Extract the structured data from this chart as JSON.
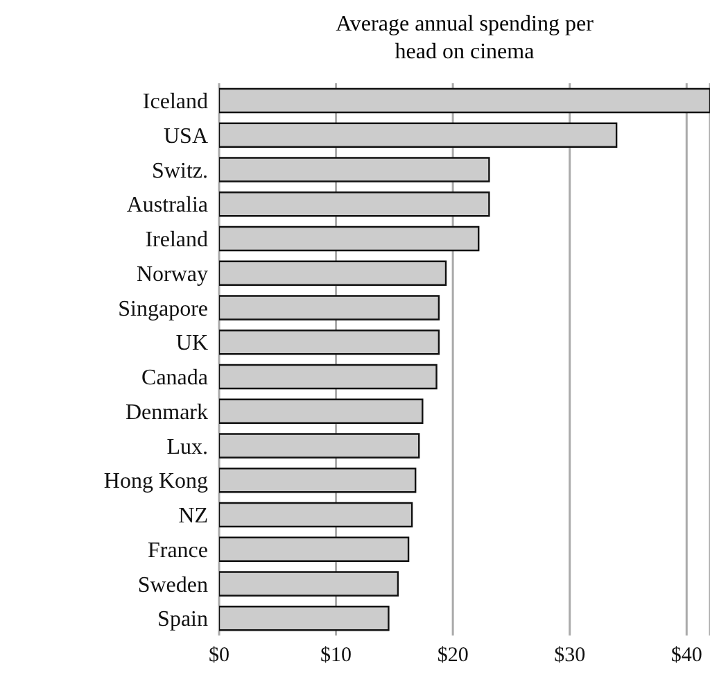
{
  "chart_data": {
    "type": "bar",
    "orientation": "horizontal",
    "title": "Average annual spending per head on cinema",
    "categories": [
      "Iceland",
      "USA",
      "Switz.",
      "Australia",
      "Ireland",
      "Norway",
      "Singapore",
      "UK",
      "Canada",
      "Denmark",
      "Lux.",
      "Hong Kong",
      "NZ",
      "France",
      "Sweden",
      "Spain"
    ],
    "values": [
      42,
      34.0,
      23.1,
      23.1,
      22.2,
      19.4,
      18.8,
      18.8,
      18.6,
      17.4,
      17.1,
      16.8,
      16.5,
      16.2,
      15.3,
      14.5
    ],
    "color": "#cccccc",
    "xlim": [
      0,
      42
    ],
    "xticks": [
      {
        "value": 0,
        "label": "$0"
      },
      {
        "value": 10,
        "label": "$10"
      },
      {
        "value": 20,
        "label": "$20"
      },
      {
        "value": 30,
        "label": "$30"
      },
      {
        "value": 40,
        "label": "$40"
      }
    ],
    "grid": "x"
  }
}
